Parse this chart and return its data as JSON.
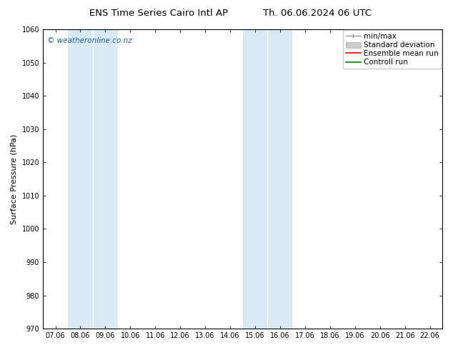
{
  "title_left": "ENS Time Series Cairo Intl AP",
  "title_right": "Th. 06.06.2024 06 UTC",
  "ylabel": "Surface Pressure (hPa)",
  "ylim": [
    970,
    1060
  ],
  "yticks": [
    970,
    980,
    990,
    1000,
    1010,
    1020,
    1030,
    1040,
    1050,
    1060
  ],
  "xlabels": [
    "07.06",
    "08.06",
    "09.06",
    "10.06",
    "11.06",
    "12.06",
    "13.06",
    "14.06",
    "15.06",
    "16.06",
    "17.06",
    "18.06",
    "19.06",
    "20.06",
    "21.06",
    "22.06"
  ],
  "shade_bands": [
    {
      "xstart": 1,
      "xend": 2,
      "color": "#daeaf5"
    },
    {
      "xstart": 2,
      "xend": 3,
      "color": "#daeaf5"
    },
    {
      "xstart": 8,
      "xend": 9,
      "color": "#daeaf5"
    },
    {
      "xstart": 9,
      "xend": 10,
      "color": "#daeaf5"
    }
  ],
  "watermark": "© weatheronline.co.nz",
  "bg_color": "#ffffff",
  "plot_bg_color": "#ffffff",
  "title_fontsize": 9.5,
  "tick_fontsize": 7,
  "ylabel_fontsize": 8,
  "legend_fontsize": 7.5
}
